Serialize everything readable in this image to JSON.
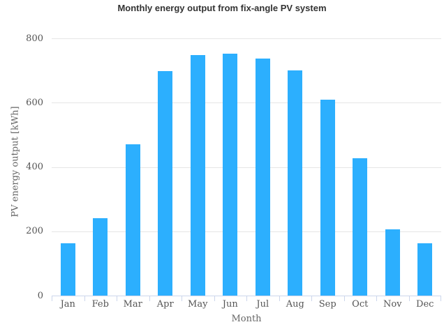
{
  "chart_data": {
    "type": "bar",
    "title": "Monthly energy output from fix-angle PV system",
    "xlabel": "Month",
    "ylabel": "PV energy output [kWh]",
    "categories": [
      "Jan",
      "Feb",
      "Mar",
      "Apr",
      "May",
      "Jun",
      "Jul",
      "Aug",
      "Sep",
      "Oct",
      "Nov",
      "Dec"
    ],
    "values": [
      162,
      241,
      471,
      698,
      749,
      753,
      738,
      700,
      610,
      428,
      205,
      162
    ],
    "ylim": [
      0,
      800
    ],
    "yticks": [
      0,
      200,
      400,
      600,
      800
    ],
    "grid": true,
    "legend": false,
    "bar_color": "#2caffe",
    "colors": {
      "title": "#333333",
      "axis_label": "#666666",
      "tick_label": "#555555",
      "gridline": "#e6e6e6",
      "axis_line": "#ccd6eb",
      "background": "#ffffff"
    }
  }
}
